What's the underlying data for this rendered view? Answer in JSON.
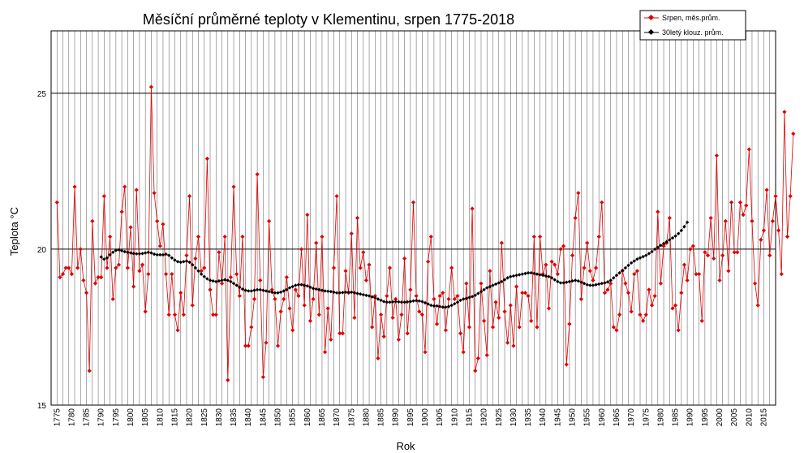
{
  "chart_data": {
    "type": "line",
    "title": "Měsíční průměrné teploty v Klementinu, srpen 1775-2018",
    "xlabel": "Rok",
    "ylabel": "Teplota  °C",
    "xlim": [
      1775,
      2018
    ],
    "ylim": [
      15,
      27
    ],
    "yticks": [
      15,
      20,
      25
    ],
    "xticks": [
      1775,
      1780,
      1785,
      1790,
      1795,
      1800,
      1805,
      1810,
      1815,
      1820,
      1825,
      1830,
      1835,
      1840,
      1845,
      1850,
      1855,
      1860,
      1865,
      1870,
      1875,
      1880,
      1885,
      1890,
      1895,
      1900,
      1905,
      1910,
      1915,
      1920,
      1925,
      1930,
      1935,
      1940,
      1945,
      1950,
      1955,
      1960,
      1965,
      1970,
      1975,
      1980,
      1985,
      1990,
      1995,
      2000,
      2005,
      2010,
      2015
    ],
    "grid": true,
    "legend_position": "top-right",
    "series": [
      {
        "name": "Srpen, měs.prům.",
        "color": "#e00000",
        "x_start": 1775,
        "values": [
          21.5,
          19.1,
          19.2,
          19.4,
          19.4,
          19.2,
          22.0,
          19.4,
          20.0,
          19.0,
          18.6,
          16.1,
          20.9,
          18.9,
          19.1,
          19.1,
          21.7,
          19.4,
          20.4,
          18.4,
          19.4,
          19.5,
          21.2,
          22.0,
          19.4,
          20.7,
          18.8,
          21.9,
          19.3,
          19.5,
          18.0,
          19.2,
          25.2,
          21.8,
          20.9,
          20.1,
          20.8,
          19.2,
          17.9,
          19.2,
          17.9,
          17.4,
          18.6,
          17.9,
          19.8,
          21.7,
          18.2,
          19.7,
          20.4,
          19.3,
          19.4,
          22.9,
          18.7,
          17.9,
          17.9,
          19.9,
          18.9,
          20.4,
          15.8,
          19.1,
          22.0,
          19.2,
          18.5,
          20.4,
          16.9,
          16.9,
          17.5,
          18.4,
          22.4,
          19.0,
          15.9,
          17.0,
          20.9,
          18.7,
          18.4,
          16.9,
          18.0,
          18.4,
          19.1,
          18.1,
          17.4,
          18.7,
          18.5,
          20.0,
          18.2,
          21.1,
          17.7,
          18.4,
          20.2,
          17.9,
          20.4,
          16.7,
          18.1,
          17.1,
          19.4,
          21.7,
          17.3,
          17.3,
          19.3,
          18.6,
          20.5,
          17.8,
          21.0,
          19.4,
          19.9,
          19.0,
          19.5,
          17.5,
          18.5,
          16.5,
          17.9,
          17.2,
          18.5,
          19.4,
          17.8,
          18.4,
          17.1,
          17.9,
          19.7,
          17.3,
          18.7,
          21.5,
          18.5,
          18.0,
          17.9,
          16.7,
          19.6,
          20.4,
          18.4,
          17.6,
          18.5,
          18.6,
          17.4,
          18.4,
          19.4,
          18.4,
          18.5,
          17.3,
          16.7,
          18.9,
          17.5,
          21.3,
          16.1,
          16.5,
          18.9,
          17.7,
          16.6,
          19.3,
          17.5,
          18.3,
          17.8,
          20.2,
          18.0,
          17.0,
          18.2,
          16.9,
          18.8,
          17.5,
          18.6,
          18.6,
          18.5,
          17.7,
          20.4,
          17.5,
          20.4,
          19.2,
          19.5,
          18.1,
          19.6,
          19.5,
          19.2,
          20.0,
          20.1,
          16.3,
          17.6,
          19.8,
          21.0,
          21.8,
          18.4,
          19.4,
          20.2,
          19.3,
          19.0,
          19.4,
          20.4,
          21.5,
          18.6,
          18.7,
          18.9,
          17.5,
          17.4,
          17.9,
          19.3,
          18.9,
          18.6,
          18.0,
          19.2,
          19.3,
          17.9,
          17.7,
          17.9,
          18.7,
          18.2,
          18.5,
          21.2,
          18.9,
          20.1,
          20.2,
          21.0,
          18.1,
          18.2,
          17.4,
          18.6,
          19.5,
          19.0,
          20.0,
          20.1,
          19.2,
          19.2,
          17.7,
          19.9,
          19.8,
          21.0,
          19.7,
          23.0,
          19.0,
          19.8,
          20.9,
          19.3,
          21.5,
          19.9,
          19.9,
          21.5,
          21.1,
          21.4,
          23.2,
          20.9,
          18.9,
          18.2,
          20.3,
          20.6,
          21.9,
          19.8,
          20.9,
          21.7,
          20.6,
          19.2,
          24.4,
          20.4,
          21.7,
          23.7
        ]
      },
      {
        "name": "30letý klouz. prům.",
        "color": "#000000",
        "x_start": 1790,
        "values": [
          19.75,
          19.68,
          19.72,
          19.82,
          19.9,
          19.96,
          19.98,
          19.95,
          19.92,
          19.9,
          19.88,
          19.86,
          19.85,
          19.85,
          19.86,
          19.88,
          19.9,
          19.88,
          19.84,
          19.82,
          19.82,
          19.82,
          19.84,
          19.8,
          19.72,
          19.65,
          19.6,
          19.58,
          19.6,
          19.62,
          19.58,
          19.5,
          19.4,
          19.3,
          19.2,
          19.12,
          19.05,
          19.0,
          18.98,
          18.96,
          18.98,
          19.0,
          19.02,
          19.0,
          18.96,
          18.9,
          18.84,
          18.78,
          18.72,
          18.68,
          18.66,
          18.66,
          18.68,
          18.7,
          18.7,
          18.68,
          18.66,
          18.64,
          18.62,
          18.6,
          18.6,
          18.62,
          18.66,
          18.7,
          18.76,
          18.8,
          18.84,
          18.86,
          18.86,
          18.84,
          18.82,
          18.78,
          18.74,
          18.72,
          18.7,
          18.68,
          18.66,
          18.65,
          18.64,
          18.62,
          18.6,
          18.6,
          18.61,
          18.62,
          18.62,
          18.62,
          18.6,
          18.58,
          18.56,
          18.54,
          18.52,
          18.5,
          18.47,
          18.44,
          18.4,
          18.36,
          18.32,
          18.3,
          18.3,
          18.31,
          18.32,
          18.31,
          18.3,
          18.3,
          18.31,
          18.32,
          18.34,
          18.35,
          18.34,
          18.32,
          18.28,
          18.24,
          18.2,
          18.18,
          18.18,
          18.16,
          18.14,
          18.14,
          18.16,
          18.2,
          18.25,
          18.3,
          18.36,
          18.4,
          18.42,
          18.45,
          18.48,
          18.52,
          18.58,
          18.64,
          18.7,
          18.76,
          18.8,
          18.84,
          18.88,
          18.92,
          18.96,
          19.02,
          19.08,
          19.12,
          19.14,
          19.16,
          19.18,
          19.2,
          19.22,
          19.24,
          19.24,
          19.22,
          19.2,
          19.18,
          19.16,
          19.14,
          19.12,
          19.08,
          19.02,
          18.96,
          18.92,
          18.92,
          18.94,
          18.96,
          18.98,
          19.0,
          18.98,
          18.94,
          18.9,
          18.86,
          18.84,
          18.84,
          18.86,
          18.88,
          18.9,
          18.92,
          18.95,
          19.0,
          19.08,
          19.16,
          19.24,
          19.32,
          19.4,
          19.48,
          19.56,
          19.62,
          19.68,
          19.72,
          19.76,
          19.8,
          19.86,
          19.92,
          20.0,
          20.06,
          20.12,
          20.18,
          20.24,
          20.3,
          20.36,
          20.42,
          20.5,
          20.6,
          20.72,
          20.86
        ]
      }
    ]
  }
}
